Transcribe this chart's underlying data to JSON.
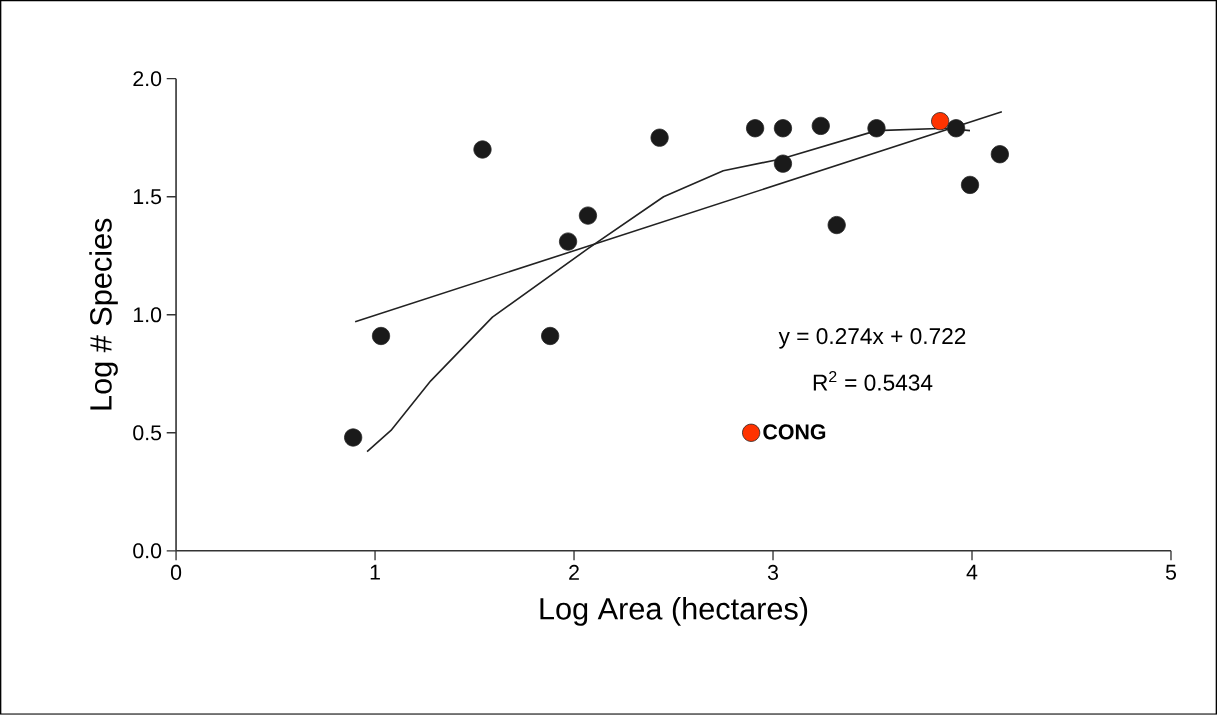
{
  "chart_data": {
    "type": "scatter",
    "xlabel": "Log Area (hectares)",
    "ylabel": "Log # Species",
    "xlim": [
      0,
      5
    ],
    "ylim": [
      0,
      2.0
    ],
    "xticks": [
      0,
      1,
      2,
      3,
      4,
      5
    ],
    "yticks": [
      {
        "value": 0,
        "label": "0.0"
      },
      0.5,
      {
        "value": 1,
        "label": "1.0"
      },
      1.5,
      {
        "value": 2,
        "label": "2.0"
      }
    ],
    "grid": false,
    "legend": "bottom",
    "marker": "circle",
    "annotations": [
      "y = 0.274x + 0.722",
      "R$^{2}$ = 0.5434"
    ],
    "series": [
      {
        "color": "#1a1a1a",
        "x": [
          0.89,
          1.03,
          1.54,
          1.88,
          1.97,
          2.07,
          2.43,
          2.91,
          3.05,
          3.05,
          3.24,
          3.32,
          3.52,
          3.92,
          3.99,
          4.14
        ],
        "values": [
          0.48,
          0.91,
          1.7,
          0.91,
          1.31,
          1.42,
          1.75,
          1.79,
          1.79,
          1.64,
          1.8,
          1.38,
          1.79,
          1.79,
          1.55,
          1.68
        ]
      },
      {
        "name": "CONG",
        "color": "#ff3300",
        "x": [
          3.84
        ],
        "values": [
          1.82
        ]
      },
      {
        "type": "line",
        "marker": "none",
        "color": "#222222",
        "x": [
          0.9,
          4.15
        ],
        "values": [
          0.97,
          1.86
        ]
      },
      {
        "type": "line",
        "marker": "none",
        "color": "#222222",
        "x": [
          0.96,
          1.08,
          1.28,
          1.59,
          2.07,
          2.45,
          2.75,
          3.04,
          3.52,
          3.87,
          3.99
        ],
        "values": [
          0.42,
          0.51,
          0.72,
          0.99,
          1.28,
          1.5,
          1.61,
          1.66,
          1.78,
          1.79,
          1.78
        ]
      }
    ]
  }
}
